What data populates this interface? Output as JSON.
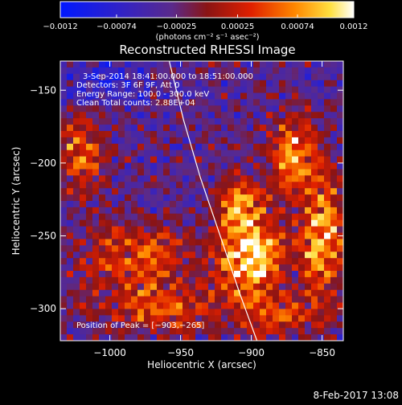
{
  "chart_data": {
    "type": "heatmap",
    "title": "Reconstructed RHESSI Image",
    "xlabel": "Heliocentric X (arcsec)",
    "ylabel": "Heliocentric Y (arcsec)",
    "xlim": [
      -1035,
      -835
    ],
    "ylim": [
      -322,
      -130
    ],
    "xticks": [
      -1000,
      -950,
      -900,
      -850
    ],
    "xtick_labels": [
      "−1000",
      "−950",
      "−900",
      "−850"
    ],
    "yticks": [
      -300,
      -250,
      -200,
      -150
    ],
    "ytick_labels": [
      "−300",
      "−250",
      "−200",
      "−150"
    ],
    "colorbar": {
      "min": -0.0012,
      "max": 0.0012,
      "ticks": [
        -0.0012,
        -0.00074,
        -0.00025,
        0.00025,
        0.00074,
        0.0012
      ],
      "tick_labels": [
        "−0.0012",
        "−0.00074",
        "−0.00025",
        "0.00025",
        "0.00074",
        "0.0012"
      ],
      "units": "(photons cm⁻² s⁻¹ asec⁻²)",
      "colormap": "blue-purple-red-yellow-white"
    },
    "annotations": {
      "time": "3-Sep-2014 18:41:00.000 to 18:51:00.000",
      "detectors": "Detectors: 3F 6F 9F, Att 0",
      "energy": "Energy Range: 100.0 - 300.0 keV",
      "clean": "Clean     Total counts: 2.88E+04",
      "peak": "Position of Peak = [−903,−265]"
    },
    "peak": {
      "x": -903,
      "y": -265
    },
    "limb_line": {
      "x": [
        -958,
        -948,
        -936,
        -922,
        -908,
        -896
      ],
      "y": [
        -130,
        -170,
        -210,
        -250,
        -290,
        -322
      ]
    },
    "hot_spots": [
      {
        "x": -900,
        "y": -262,
        "sx": 16,
        "sy": 22,
        "amp": 1.0
      },
      {
        "x": -870,
        "y": -195,
        "sx": 12,
        "sy": 18,
        "amp": 0.75
      },
      {
        "x": -850,
        "y": -250,
        "sx": 10,
        "sy": 30,
        "amp": 0.85
      },
      {
        "x": -980,
        "y": -265,
        "sx": 28,
        "sy": 16,
        "amp": 0.55
      },
      {
        "x": -1020,
        "y": -195,
        "sx": 12,
        "sy": 18,
        "amp": 0.6
      },
      {
        "x": -965,
        "y": -300,
        "sx": 30,
        "sy": 12,
        "amp": 0.5
      },
      {
        "x": -880,
        "y": -305,
        "sx": 20,
        "sy": 10,
        "amp": 0.45
      },
      {
        "x": -910,
        "y": -225,
        "sx": 10,
        "sy": 12,
        "amp": 0.55
      }
    ]
  },
  "footer": {
    "timestamp": "8-Feb-2017 13:08"
  }
}
